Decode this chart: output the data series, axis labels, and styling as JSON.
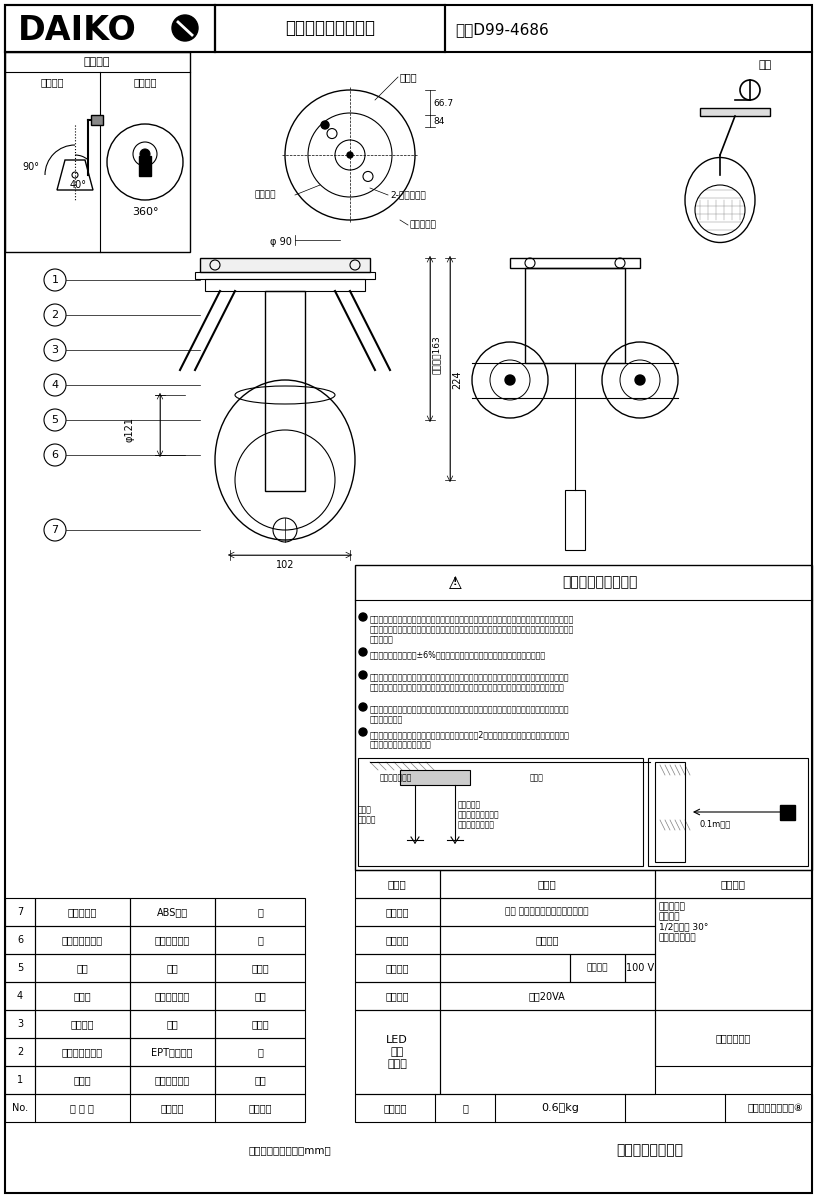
{
  "title_brand": "DAIKO",
  "title_product": "防雨スポットライト",
  "title_code": "品番D99-4686",
  "bg_color": "#ffffff",
  "section_movable": "可動範囲",
  "label_neck": "首振角度",
  "label_rotate": "回転角度",
  "label_360": "360°",
  "label_90": "90°",
  "label_40": "40°",
  "label_mounting": "取付部",
  "label_power_hole": "電源用穴",
  "label_screw_hole": "2-木ねじ用穴",
  "label_earth": "アース端子",
  "label_phi90": "φ 90",
  "label_66_7": "66.7",
  "label_84": "84",
  "label_163": "吊り高さ163",
  "label_224": "224",
  "label_121": "φ121",
  "label_102": "102",
  "label_posture": "姿図",
  "safety_title": "安全に関するご注意",
  "safety_b1": "この器具は、一般通常環境の屋外防雨形天井付・壁付・床付兼用器具です。一般通常環境以外の\nの所、浴室、サウナ風呂、湿気の多い所では使用しないでください。落下・感電・火災の原因に\nなります。",
  "safety_b2": "電源電圧は、定格電圧±6%内でご使用下さい。感電・火災の原因になります。",
  "safety_b3": "照射部分が枝や葉などで覆われないようにご注意ください。樹木の立枯れ・火災の原因となり\nます。また樹木の成長や枯れ葉の堆積も考慮してください。感電・火災の原因になります。",
  "safety_b4": "器具の取付面は、ベースパッキンの大きさ以上の平らな面に仕上げて下さい。感電・火災の原\n因になります。",
  "safety_b5": "この器具は木ねじ取付専用器具です。必ず木ねじ（2本）で補強材のある位置に取付けて下さ\nい。落下の原因になります。",
  "lbl_base_packing": "ベースパッキン",
  "lbl_mounting_seal": "取付座\nシール剤",
  "lbl_seal_note": "シール剤を\nパッキン外周部にも\n塗り付けて下さい",
  "lbl_spacer": "遮空材",
  "lbl_01m": "0.1m以上",
  "spec_func": "機　能",
  "spec_func_val": "防雨用",
  "spec_note_hdr": "特記事項",
  "spec_place_lbl": "取付場所",
  "spec_place_val": "屋外 天井直付・壁付・床直付兼用",
  "spec_notes": "ランプ別売\n灯具可動\n1/2照度角 30°\n調光器併用不可",
  "spec_power_lbl": "電源接続",
  "spec_power_val": "口出し線",
  "spec_watt_lbl": "消費電力",
  "spec_volt_lbl": "定格電圧",
  "spec_volt_val": "100 V",
  "spec_cap_lbl": "電気容量",
  "spec_cap_val": "最大20VA",
  "spec_led": "LED\n別売\n交換可",
  "spec_switch": "スイッチ無し",
  "parts": [
    [
      "7",
      "ツマミネジ",
      "ABS樹脂",
      "黒"
    ],
    [
      "6",
      "ランプパッキン",
      "シリコンゴム",
      "黒"
    ],
    [
      "5",
      "灯体",
      "銅板",
      "黒塗装"
    ],
    [
      "4",
      "アーム",
      "ステンレス板",
      "生地"
    ],
    [
      "3",
      "フランジ",
      "銅板",
      "黒塗装"
    ],
    [
      "2",
      "ベースパッキン",
      "EPTスポンジ",
      "黒"
    ],
    [
      "1",
      "取付座",
      "ステンレス板",
      "生地"
    ]
  ],
  "footer_left": "第三角法　（単位：mm）",
  "footer_right": "大光電機株式会社",
  "weight_label": "器具重量",
  "weight_val": "約　　　0.6　kg",
  "inspector": "峠田　　老田　　⑧"
}
